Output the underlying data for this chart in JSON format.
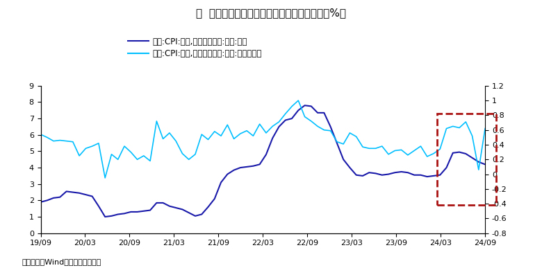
{
  "title": "图  美国不含住房租金的服务通胀同比和环比（%）",
  "legend1": "美国:CPI:服务,不含住房租金:季调:同比",
  "legend2": "美国:CPI:服务,不含住房租金:季调:环比（右）",
  "footer": "资料来源：Wind，海通证券研究所",
  "yoy_color": "#1a1aaa",
  "mom_color": "#00BFFF",
  "ylim_left": [
    0,
    9
  ],
  "ylim_right": [
    -0.8,
    1.2
  ],
  "yticks_left": [
    0,
    1,
    2,
    3,
    4,
    5,
    6,
    7,
    8,
    9
  ],
  "yticks_right": [
    -0.8,
    -0.6,
    -0.4,
    -0.2,
    0,
    0.2,
    0.4,
    0.6,
    0.8,
    1.0,
    1.2
  ],
  "xtick_labels": [
    "19/09",
    "20/03",
    "20/09",
    "21/03",
    "21/09",
    "22/03",
    "22/09",
    "23/03",
    "23/09",
    "24/03",
    "24/09"
  ],
  "background_color": "#FFFFFF",
  "yoy_data": [
    1.9,
    2.0,
    2.15,
    2.2,
    2.55,
    2.5,
    2.45,
    2.35,
    2.25,
    1.65,
    1.0,
    1.05,
    1.15,
    1.2,
    1.3,
    1.3,
    1.35,
    1.4,
    1.85,
    1.85,
    1.65,
    1.55,
    1.45,
    1.25,
    1.05,
    1.15,
    1.6,
    2.1,
    3.1,
    3.6,
    3.85,
    4.0,
    4.05,
    4.1,
    4.2,
    4.8,
    5.8,
    6.5,
    6.9,
    7.0,
    7.5,
    7.8,
    7.75,
    7.35,
    7.35,
    6.5,
    5.5,
    4.5,
    4.0,
    3.55,
    3.5,
    3.7,
    3.65,
    3.55,
    3.6,
    3.7,
    3.75,
    3.7,
    3.55,
    3.55,
    3.45,
    3.5,
    3.55,
    4.0,
    4.9,
    4.95,
    4.85,
    4.6,
    4.35,
    4.2
  ],
  "mom_data": [
    0.54,
    0.5,
    0.45,
    0.46,
    0.45,
    0.44,
    0.25,
    0.35,
    0.38,
    0.42,
    -0.05,
    0.27,
    0.2,
    0.38,
    0.3,
    0.2,
    0.25,
    0.18,
    0.72,
    0.48,
    0.56,
    0.45,
    0.28,
    0.2,
    0.27,
    0.54,
    0.47,
    0.58,
    0.52,
    0.67,
    0.48,
    0.55,
    0.59,
    0.52,
    0.68,
    0.56,
    0.65,
    0.71,
    0.82,
    0.92,
    1.0,
    0.78,
    0.72,
    0.65,
    0.6,
    0.59,
    0.44,
    0.41,
    0.56,
    0.51,
    0.37,
    0.35,
    0.35,
    0.38,
    0.27,
    0.32,
    0.33,
    0.26,
    0.32,
    0.38,
    0.24,
    0.28,
    0.34,
    0.62,
    0.65,
    0.63,
    0.71,
    0.52,
    0.06,
    0.62
  ]
}
